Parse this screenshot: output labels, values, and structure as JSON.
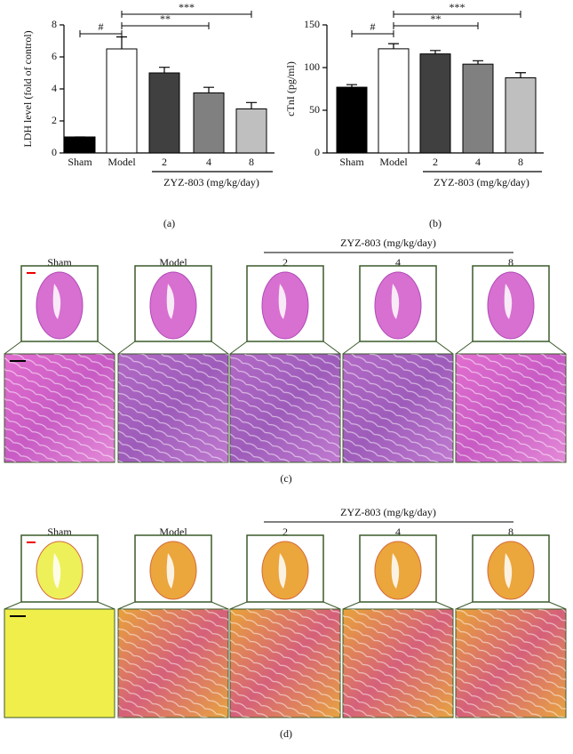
{
  "chart_data": [
    {
      "type": "bar",
      "ylabel": "LDH level (fold of control)",
      "categories": [
        "Sham",
        "Model",
        "2",
        "4",
        "8"
      ],
      "values": [
        1,
        6.5,
        5,
        3.75,
        2.75
      ],
      "errors": [
        0,
        0.75,
        0.35,
        0.35,
        0.4
      ],
      "colors": [
        "#000000",
        "#ffffff",
        "#404040",
        "#808080",
        "#bfbfbf"
      ],
      "ylim": [
        0,
        8
      ],
      "yticks": [
        0,
        2,
        4,
        6,
        8
      ],
      "significance": [
        "#",
        "**",
        "***"
      ],
      "group_label": "ZYZ-803 (mg/kg/day)",
      "panel_label": "(a)"
    },
    {
      "type": "bar",
      "ylabel": "cTnI (pg/ml)",
      "categories": [
        "Sham",
        "Model",
        "2",
        "4",
        "8"
      ],
      "values": [
        77,
        122,
        116,
        104,
        88
      ],
      "errors": [
        3,
        6,
        4,
        4,
        6
      ],
      "colors": [
        "#000000",
        "#ffffff",
        "#404040",
        "#808080",
        "#bfbfbf"
      ],
      "ylim": [
        0,
        150
      ],
      "yticks": [
        0,
        50,
        100,
        150
      ],
      "significance": [
        "#",
        "**",
        "***"
      ],
      "group_label": "ZYZ-803 (mg/kg/day)",
      "panel_label": "(b)"
    }
  ],
  "figure_panels": [
    {
      "panel_label": "(c)",
      "group_label": "ZYZ-803 (mg/kg/day)",
      "columns": [
        "Sham",
        "Model",
        "2",
        "4",
        "8"
      ]
    },
    {
      "panel_label": "(d)",
      "group_label": "ZYZ-803 (mg/kg/day)",
      "columns": [
        "Sham",
        "Model",
        "2",
        "4",
        "8"
      ]
    }
  ]
}
